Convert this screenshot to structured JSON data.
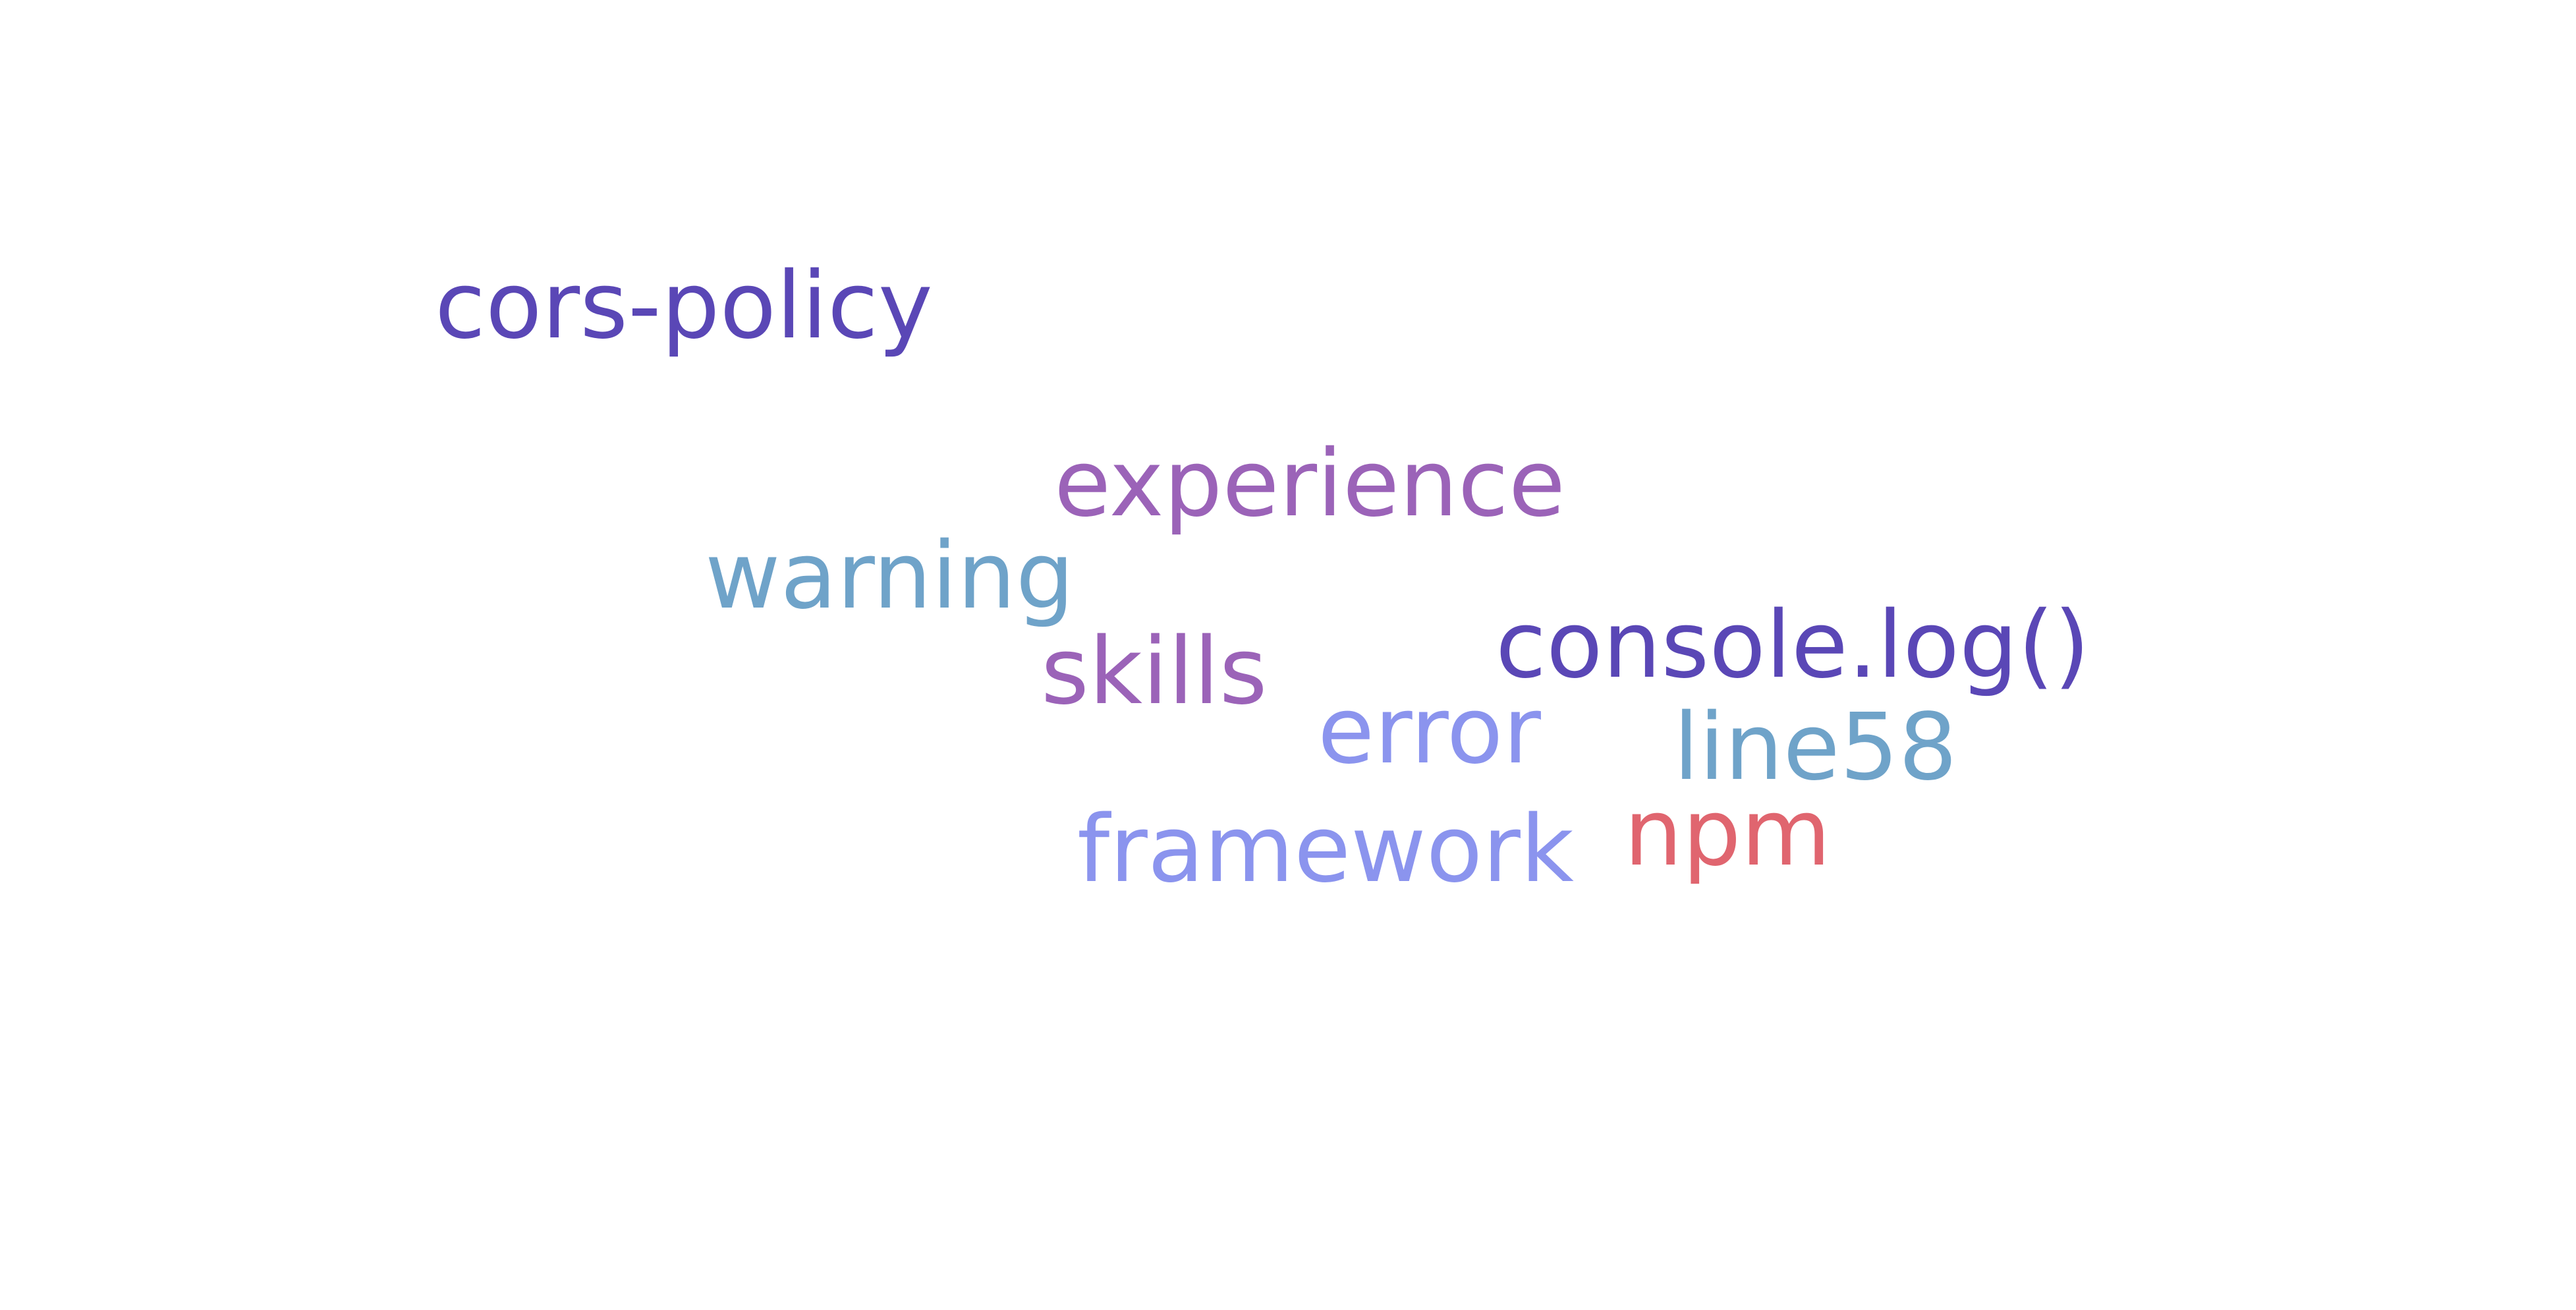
{
  "word_cloud": {
    "words": [
      {
        "text": "cors-policy",
        "color": "#5a47b6"
      },
      {
        "text": "experience",
        "color": "#9b63b8"
      },
      {
        "text": "warning",
        "color": "#6fa3c9"
      },
      {
        "text": "console.log()",
        "color": "#5a47b6"
      },
      {
        "text": "skills",
        "color": "#9b63b8"
      },
      {
        "text": "error",
        "color": "#8b94ee"
      },
      {
        "text": "line58",
        "color": "#6fa3c9"
      },
      {
        "text": "npm",
        "color": "#e0656f"
      },
      {
        "text": "framework",
        "color": "#8b94ee"
      }
    ]
  }
}
